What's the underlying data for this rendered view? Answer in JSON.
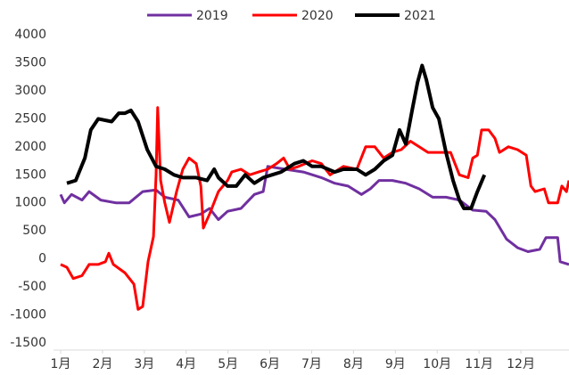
{
  "chart_data": {
    "type": "line",
    "xlim": [
      1,
      13.15
    ],
    "xticks": [
      {
        "value": 1,
        "label": "1月"
      },
      {
        "value": 2,
        "label": "2月"
      },
      {
        "value": 3,
        "label": "3月"
      },
      {
        "value": 4,
        "label": "4月"
      },
      {
        "value": 5,
        "label": "5月"
      },
      {
        "value": 6,
        "label": "6月"
      },
      {
        "value": 7,
        "label": "7月"
      },
      {
        "value": 8,
        "label": "8月"
      },
      {
        "value": 9,
        "label": "9月"
      },
      {
        "value": 10,
        "label": "10月"
      },
      {
        "value": 11,
        "label": "11月"
      },
      {
        "value": 12,
        "label": "12月"
      }
    ],
    "ylim": [
      -1500,
      4000
    ],
    "yticks": [
      -1500,
      -1000,
      -500,
      0,
      500,
      1000,
      1500,
      2000,
      2500,
      3000,
      3500,
      4000
    ],
    "legend": "top",
    "series": [
      {
        "name": "2019",
        "color": "#7030a0",
        "x": [
          1.0,
          1.09,
          1.26,
          1.51,
          1.68,
          1.96,
          2.32,
          2.64,
          2.96,
          3.28,
          3.49,
          3.81,
          4.07,
          4.35,
          4.56,
          4.77,
          4.99,
          5.31,
          5.63,
          5.84,
          5.95,
          6.37,
          6.8,
          7.23,
          7.55,
          7.87,
          8.19,
          8.4,
          8.61,
          8.93,
          9.25,
          9.57,
          9.89,
          10.21,
          10.53,
          10.85,
          11.17,
          11.38,
          11.66,
          11.92,
          12.17,
          12.45,
          12.6,
          12.88,
          12.94,
          13.15
        ],
        "values": [
          1150,
          1000,
          1150,
          1050,
          1200,
          1050,
          1000,
          1000,
          1200,
          1230,
          1100,
          1050,
          750,
          800,
          900,
          700,
          850,
          900,
          1150,
          1200,
          1650,
          1600,
          1550,
          1450,
          1350,
          1300,
          1150,
          1250,
          1400,
          1400,
          1350,
          1250,
          1100,
          1100,
          1050,
          870,
          850,
          700,
          350,
          200,
          130,
          170,
          380,
          380,
          -50,
          -100
        ]
      },
      {
        "name": "2020",
        "color": "#ff0000",
        "x": [
          1.0,
          1.15,
          1.3,
          1.51,
          1.68,
          1.9,
          2.07,
          2.15,
          2.26,
          2.54,
          2.75,
          2.85,
          2.96,
          3.09,
          3.22,
          3.28,
          3.32,
          3.39,
          3.49,
          3.6,
          3.77,
          3.92,
          4.07,
          4.24,
          4.35,
          4.41,
          4.56,
          4.77,
          4.99,
          5.09,
          5.31,
          5.52,
          5.73,
          5.95,
          6.16,
          6.33,
          6.48,
          6.69,
          7.01,
          7.23,
          7.44,
          7.76,
          8.08,
          8.29,
          8.51,
          8.72,
          8.93,
          9.14,
          9.36,
          9.57,
          9.78,
          10.1,
          10.32,
          10.53,
          10.74,
          10.85,
          10.96,
          11.06,
          11.23,
          11.38,
          11.49,
          11.7,
          11.92,
          12.13,
          12.24,
          12.34,
          12.56,
          12.66,
          12.88,
          12.98,
          13.09,
          13.15
        ],
        "values": [
          -100,
          -150,
          -350,
          -300,
          -100,
          -100,
          -50,
          100,
          -100,
          -250,
          -450,
          -900,
          -850,
          -50,
          400,
          1500,
          2700,
          1400,
          1000,
          650,
          1200,
          1600,
          1800,
          1700,
          1300,
          550,
          800,
          1200,
          1400,
          1550,
          1600,
          1500,
          1550,
          1600,
          1700,
          1800,
          1600,
          1650,
          1750,
          1700,
          1500,
          1650,
          1600,
          2000,
          2000,
          1800,
          1900,
          1950,
          2100,
          2000,
          1900,
          1900,
          1900,
          1500,
          1450,
          1800,
          1850,
          2300,
          2300,
          2150,
          1900,
          2000,
          1950,
          1850,
          1300,
          1200,
          1250,
          1000,
          1000,
          1300,
          1200,
          1400
        ]
      },
      {
        "name": "2021",
        "color": "#000000",
        "x": [
          1.15,
          1.36,
          1.58,
          1.72,
          1.9,
          2.22,
          2.39,
          2.54,
          2.68,
          2.85,
          3.07,
          3.28,
          3.49,
          3.71,
          3.92,
          4.24,
          4.5,
          4.67,
          4.77,
          4.99,
          5.2,
          5.41,
          5.63,
          5.84,
          6.05,
          6.27,
          6.59,
          6.8,
          7.01,
          7.23,
          7.55,
          7.76,
          8.08,
          8.29,
          8.51,
          8.72,
          8.93,
          9.1,
          9.25,
          9.4,
          9.53,
          9.64,
          9.74,
          9.89,
          10.04,
          10.21,
          10.38,
          10.53,
          10.64,
          10.81,
          10.96,
          11.13
        ],
        "values": [
          1350,
          1400,
          1800,
          2300,
          2500,
          2450,
          2600,
          2600,
          2650,
          2450,
          1950,
          1650,
          1600,
          1500,
          1450,
          1450,
          1400,
          1600,
          1450,
          1300,
          1300,
          1500,
          1350,
          1450,
          1500,
          1550,
          1700,
          1750,
          1650,
          1650,
          1550,
          1600,
          1600,
          1500,
          1600,
          1750,
          1850,
          2300,
          2050,
          2650,
          3150,
          3450,
          3200,
          2700,
          2500,
          1900,
          1400,
          1050,
          900,
          900,
          1200,
          1500
        ]
      }
    ]
  }
}
